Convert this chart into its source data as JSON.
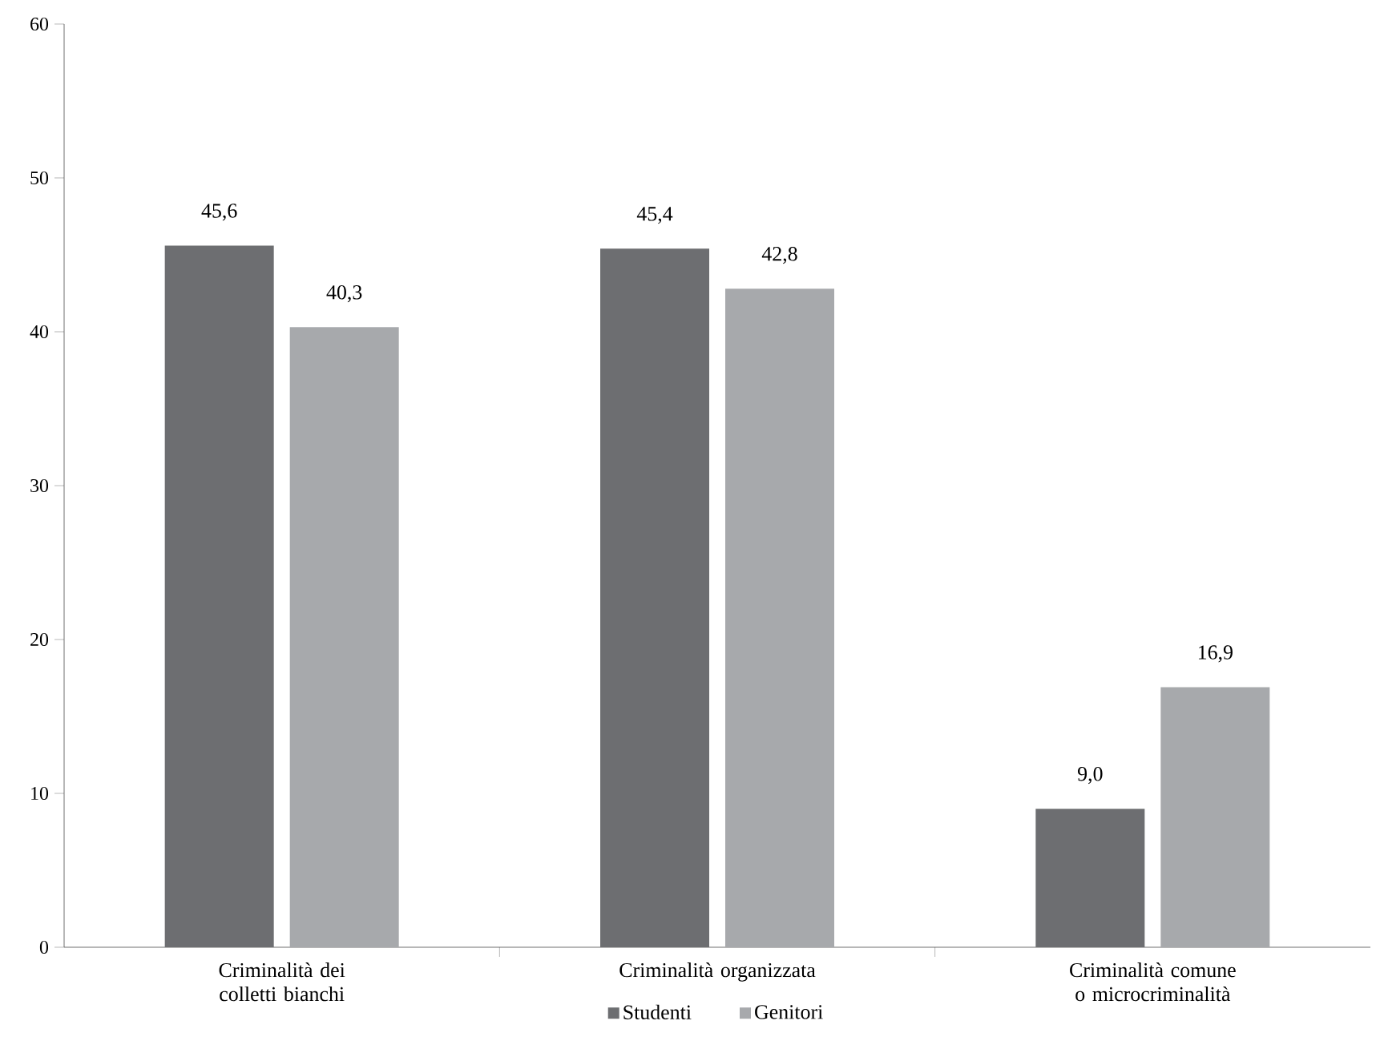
{
  "chart_data": {
    "type": "bar",
    "categories": [
      "Criminalità dei colletti bianchi",
      "Criminalità organizzata",
      "Criminalità comune o microcriminalità"
    ],
    "series": [
      {
        "name": "Studenti",
        "color": "#6d6e71",
        "values": [
          45.6,
          45.4,
          9.0
        ],
        "value_labels": [
          "45,6",
          "45,4",
          "9,0"
        ]
      },
      {
        "name": "Genitori",
        "color": "#a7a9ac",
        "values": [
          40.3,
          42.8,
          16.9
        ],
        "value_labels": [
          "40,3",
          "42,8",
          "16,9"
        ]
      }
    ],
    "ylim": [
      0,
      60
    ],
    "yticks": [
      0,
      10,
      20,
      30,
      40,
      50,
      60
    ],
    "grid": false,
    "legend": "bottom"
  }
}
